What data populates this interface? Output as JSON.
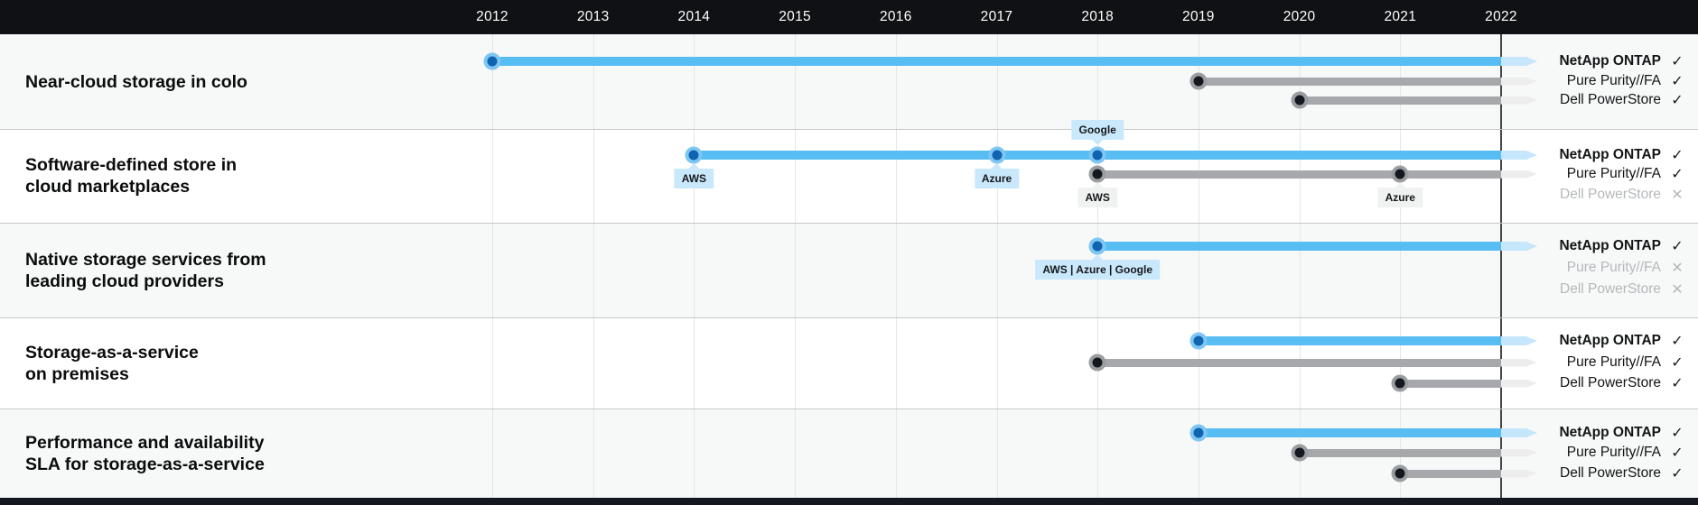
{
  "marks": {
    "check": "✓",
    "cross": "✕"
  },
  "colors": {
    "header_bg": "#101114",
    "footer_bg": "#14171d",
    "netapp_bar": "#57bdf2",
    "netapp_bar_tail": "#c6e6fb",
    "netapp_dot": "#1063ae",
    "competitor_bar": "#a6a8ab",
    "competitor_bar_tail": "#ededee",
    "competitor_dot": "#15191f",
    "milestone_tag_blue": "#c9e8fb",
    "milestone_tag_gray": "#f0f1f1",
    "disabled_text": "#b5b8bb",
    "row_alt_bg": "#f7f8f8"
  },
  "chart_data": {
    "type": "timeline",
    "x_start": 2012,
    "x_end": 2022,
    "years": [
      "2012",
      "2013",
      "2014",
      "2015",
      "2016",
      "2017",
      "2018",
      "2019",
      "2020",
      "2021",
      "2022"
    ],
    "rows": [
      {
        "label": "Near-cloud storage in colo",
        "series": [
          {
            "name": "NetApp ONTAP",
            "style": "blue",
            "supported": true,
            "start": 2012,
            "milestones": []
          },
          {
            "name": "Pure Purity//FA",
            "style": "gray",
            "supported": true,
            "start": 2019,
            "milestones": []
          },
          {
            "name": "Dell PowerStore",
            "style": "gray",
            "supported": true,
            "start": 2020,
            "milestones": []
          }
        ]
      },
      {
        "label": "Software-defined store in\ncloud marketplaces",
        "series": [
          {
            "name": "NetApp ONTAP",
            "style": "blue",
            "supported": true,
            "start": 2014,
            "milestones": [
              {
                "year": 2014,
                "label": "AWS",
                "position": "below"
              },
              {
                "year": 2017,
                "label": "Azure",
                "position": "below"
              },
              {
                "year": 2018,
                "label": "Google",
                "position": "above"
              }
            ]
          },
          {
            "name": "Pure Purity//FA",
            "style": "gray",
            "supported": true,
            "start": 2018,
            "milestones": [
              {
                "year": 2018,
                "label": "AWS",
                "position": "below"
              },
              {
                "year": 2021,
                "label": "Azure",
                "position": "below"
              }
            ]
          },
          {
            "name": "Dell PowerStore",
            "style": "gray",
            "supported": false,
            "start": null,
            "milestones": []
          }
        ]
      },
      {
        "label": "Native storage services from\nleading cloud providers",
        "series": [
          {
            "name": "NetApp ONTAP",
            "style": "blue",
            "supported": true,
            "start": 2018,
            "milestones": [
              {
                "year": 2018,
                "label": "AWS | Azure | Google",
                "position": "below"
              }
            ]
          },
          {
            "name": "Pure Purity//FA",
            "style": "gray",
            "supported": false,
            "start": null,
            "milestones": []
          },
          {
            "name": "Dell PowerStore",
            "style": "gray",
            "supported": false,
            "start": null,
            "milestones": []
          }
        ]
      },
      {
        "label": "Storage-as-a-service\non premises",
        "series": [
          {
            "name": "NetApp ONTAP",
            "style": "blue",
            "supported": true,
            "start": 2019,
            "milestones": []
          },
          {
            "name": "Pure Purity//FA",
            "style": "gray",
            "supported": true,
            "start": 2018,
            "milestones": []
          },
          {
            "name": "Dell PowerStore",
            "style": "gray",
            "supported": true,
            "start": 2021,
            "milestones": []
          }
        ]
      },
      {
        "label": "Performance and availability\nSLA for storage-as-a-service",
        "series": [
          {
            "name": "NetApp ONTAP",
            "style": "blue",
            "supported": true,
            "start": 2019,
            "milestones": []
          },
          {
            "name": "Pure Purity//FA",
            "style": "gray",
            "supported": true,
            "start": 2020,
            "milestones": []
          },
          {
            "name": "Dell PowerStore",
            "style": "gray",
            "supported": true,
            "start": 2021,
            "milestones": []
          }
        ]
      }
    ]
  }
}
